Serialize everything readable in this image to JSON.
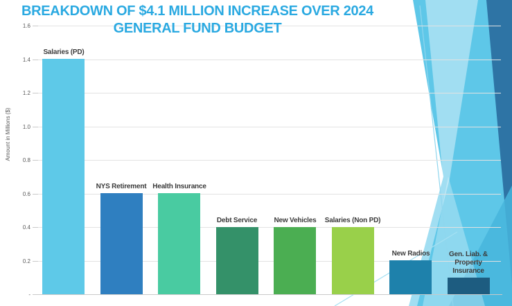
{
  "chart_data": {
    "type": "bar",
    "title": "BREAKDOWN OF $4.1 MILLION INCREASE OVER 2024 GENERAL FUND BUDGET",
    "title_lines": [
      "BREAKDOWN OF $4.1 MILLION INCREASE OVER 2024",
      "GENERAL FUND BUDGET"
    ],
    "title_color": "#2aa9e1",
    "ylabel": "Amount in Millions ($)",
    "xlabel": "",
    "ylim": [
      0,
      1.6
    ],
    "grid": true,
    "legend": false,
    "yticks": [
      {
        "value": 1.6,
        "label": "1.6"
      },
      {
        "value": 1.4,
        "label": "1.4"
      },
      {
        "value": 1.2,
        "label": "1.2"
      },
      {
        "value": 1.0,
        "label": "1.0"
      },
      {
        "value": 0.8,
        "label": "0.8"
      },
      {
        "value": 0.6,
        "label": "0.6"
      },
      {
        "value": 0.4,
        "label": "0.4"
      },
      {
        "value": 0.2,
        "label": "0.2"
      },
      {
        "value": 0,
        "label": "-"
      }
    ],
    "categories": [
      "Salaries (PD)",
      "NYS Retirement",
      "Health Insurance",
      "Debt Service",
      "New Vehicles",
      "Salaries (Non PD)",
      "New Radios",
      "Gen. Liab. & Property Insurance"
    ],
    "values": [
      1.4,
      0.6,
      0.6,
      0.4,
      0.4,
      0.4,
      0.2,
      0.1
    ],
    "bar_colors": [
      "#5ec9e8",
      "#2f7fc0",
      "#49cba1",
      "#349169",
      "#4bae52",
      "#99d04a",
      "#1e81ab",
      "#1d5c80"
    ],
    "bar_label_color": "#3b3b3b",
    "axis_text_color": "#595959",
    "background_accent_colors": [
      "#5ec7e8",
      "#2e74a5",
      "#47b5dc"
    ]
  }
}
